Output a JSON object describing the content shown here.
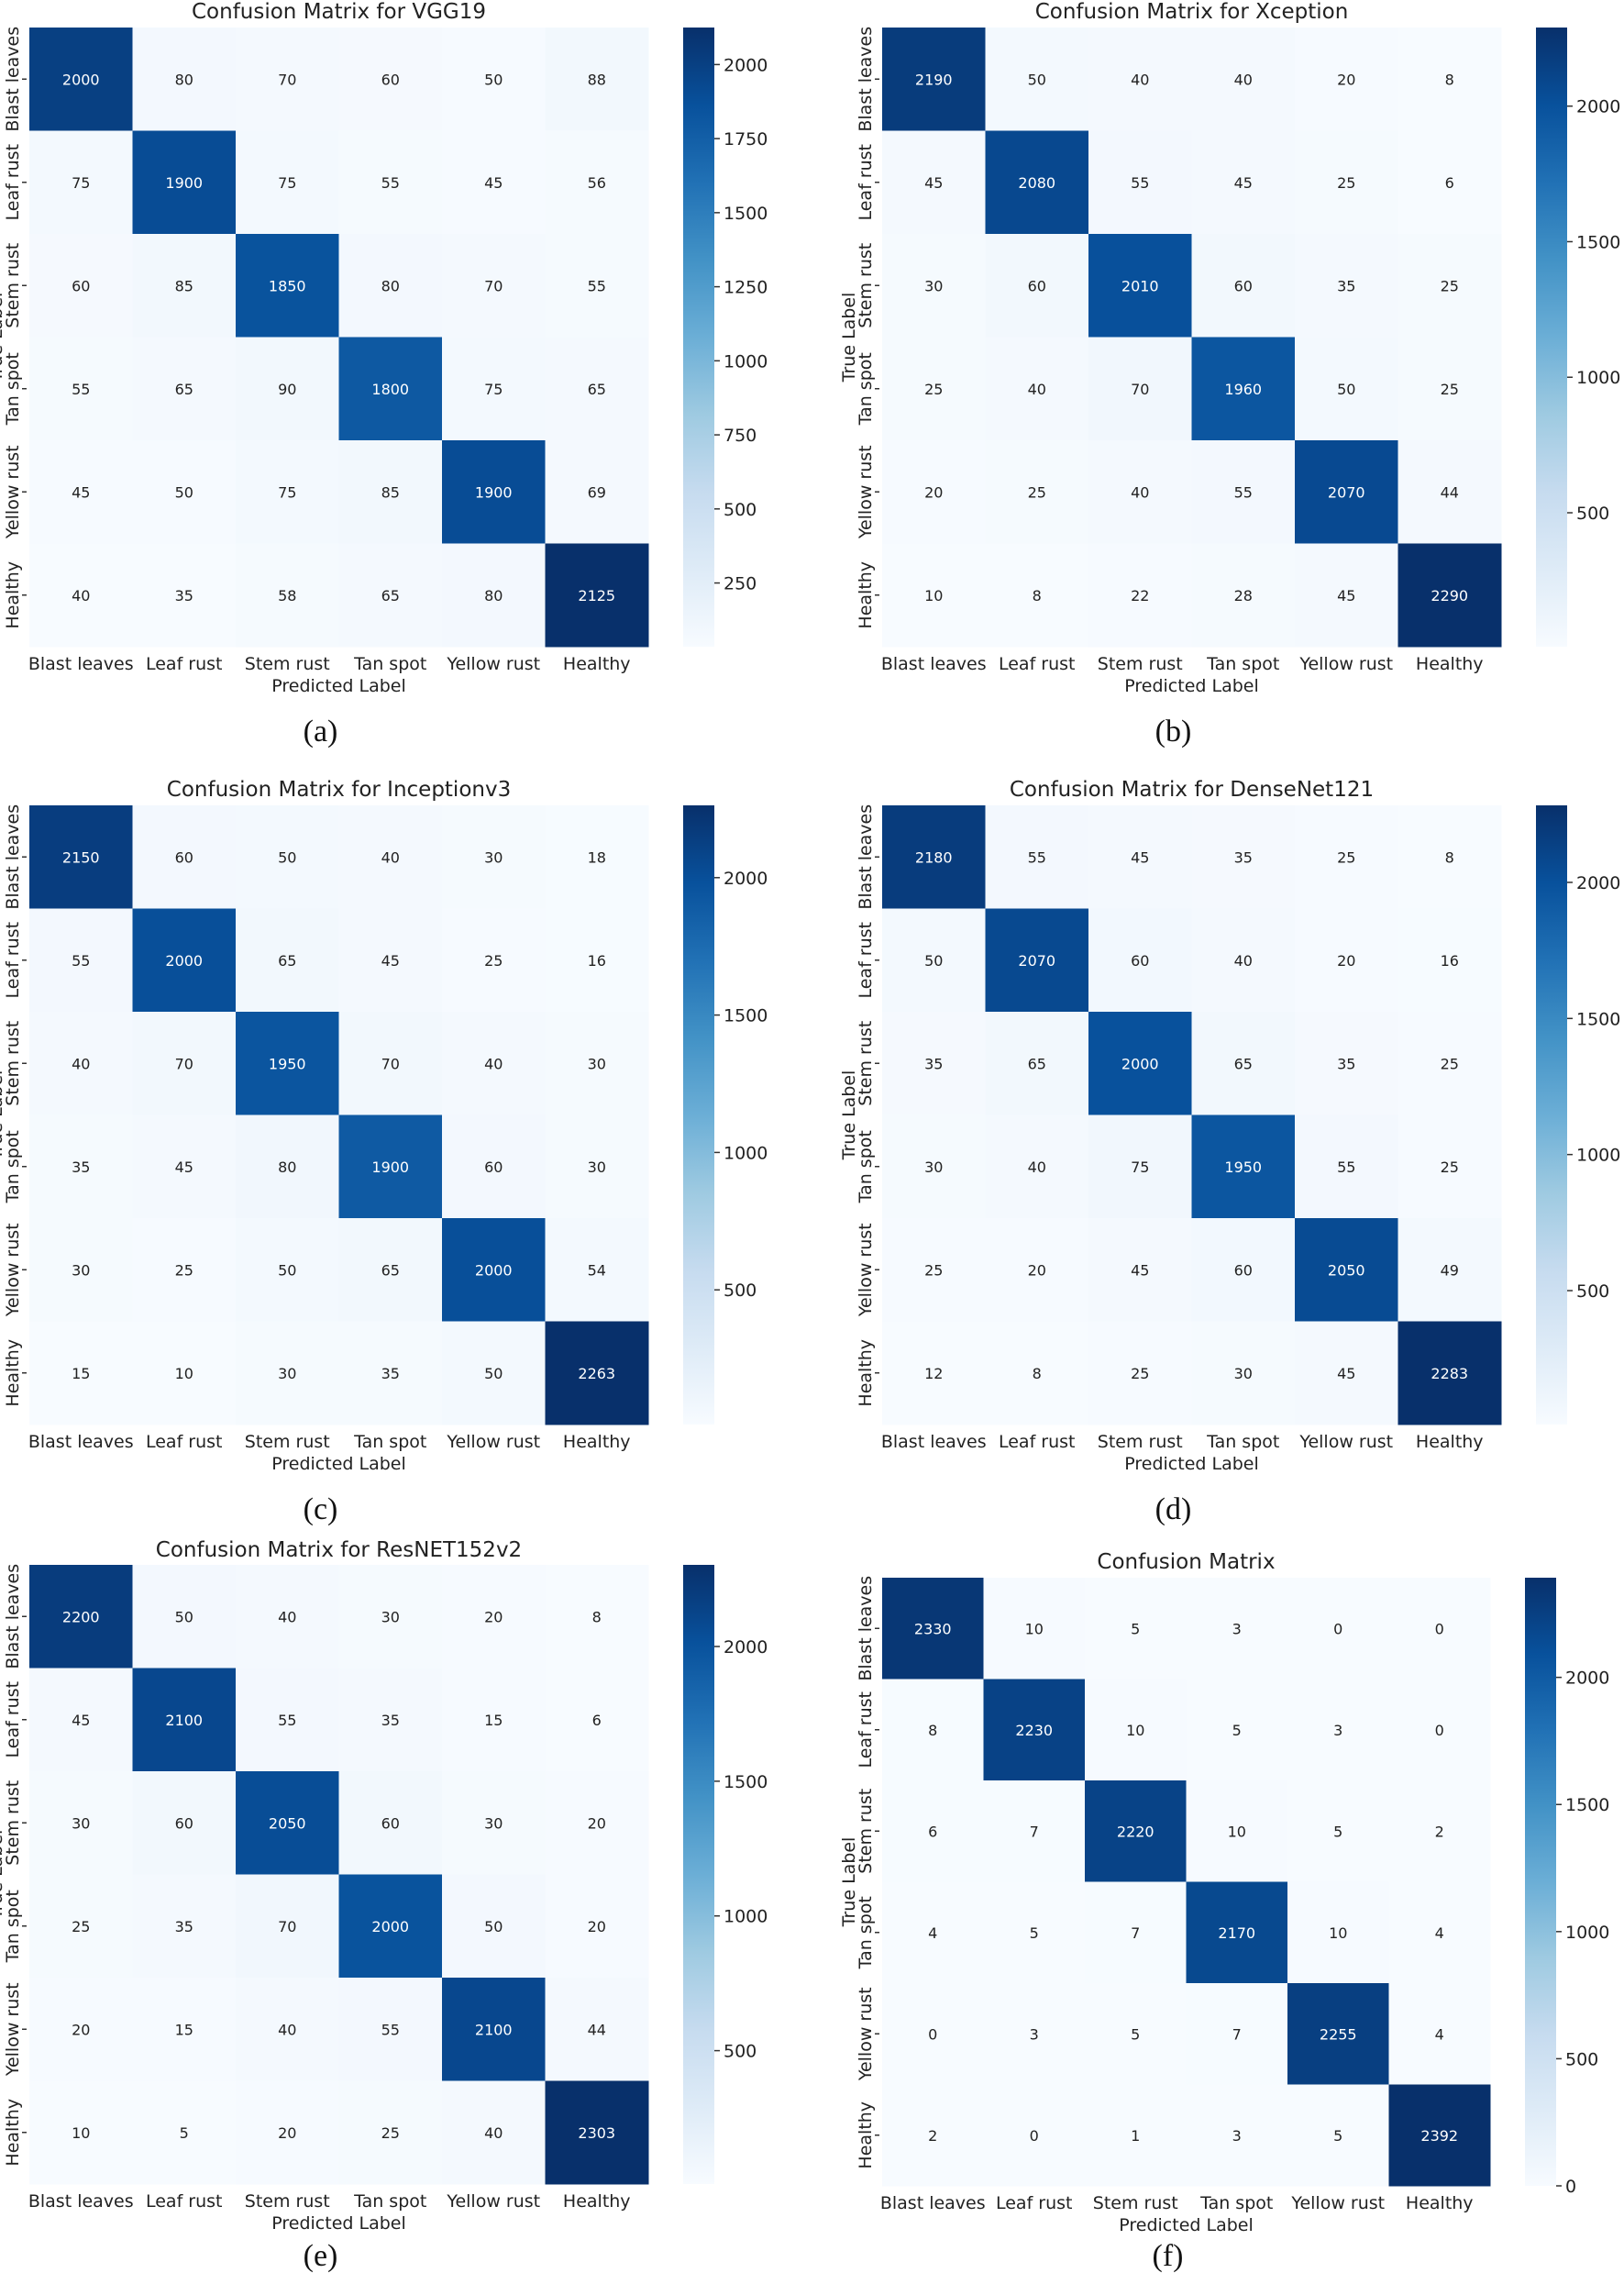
{
  "classes": [
    "Blast leaves",
    "Leaf rust",
    "Stem rust",
    "Tan spot",
    "Yellow rust",
    "Healthy"
  ],
  "xlabel": "Predicted Label",
  "ylabel": "True Label",
  "colorscale": [
    "#f7fbff",
    "#deebf7",
    "#c6dbef",
    "#9ecae1",
    "#6baed6",
    "#4292c6",
    "#2171b5",
    "#08519c",
    "#08306b"
  ],
  "chart_data": [
    {
      "type": "heatmap",
      "panel_label": "(a)",
      "title": "Confusion Matrix for VGG19",
      "xlabel": "Predicted Label",
      "ylabel": "True Label",
      "categories": [
        "Blast leaves",
        "Leaf rust",
        "Stem rust",
        "Tan spot",
        "Yellow rust",
        "Healthy"
      ],
      "matrix": [
        [
          2000,
          80,
          70,
          60,
          50,
          88
        ],
        [
          75,
          1900,
          75,
          55,
          45,
          56
        ],
        [
          60,
          85,
          1850,
          80,
          70,
          55
        ],
        [
          55,
          65,
          90,
          1800,
          75,
          65
        ],
        [
          45,
          50,
          75,
          85,
          1900,
          69
        ],
        [
          40,
          35,
          58,
          65,
          80,
          2125
        ]
      ],
      "color_range": [
        35,
        2125
      ],
      "colorbar_ticks": [
        250,
        500,
        750,
        1000,
        1250,
        1500,
        1750,
        2000
      ]
    },
    {
      "type": "heatmap",
      "panel_label": "(b)",
      "title": "Confusion Matrix for Xception",
      "xlabel": "Predicted Label",
      "ylabel": "True Label",
      "categories": [
        "Blast leaves",
        "Leaf rust",
        "Stem rust",
        "Tan spot",
        "Yellow rust",
        "Healthy"
      ],
      "matrix": [
        [
          2190,
          50,
          40,
          40,
          20,
          8
        ],
        [
          45,
          2080,
          55,
          45,
          25,
          6
        ],
        [
          30,
          60,
          2010,
          60,
          35,
          25
        ],
        [
          25,
          40,
          70,
          1960,
          50,
          25
        ],
        [
          20,
          25,
          40,
          55,
          2070,
          44
        ],
        [
          10,
          8,
          22,
          28,
          45,
          2290
        ]
      ],
      "color_range": [
        6,
        2290
      ],
      "colorbar_ticks": [
        500,
        1000,
        1500,
        2000
      ]
    },
    {
      "type": "heatmap",
      "panel_label": "(c)",
      "title": "Confusion Matrix for Inceptionv3",
      "xlabel": "Predicted Label",
      "ylabel": "True Label",
      "categories": [
        "Blast leaves",
        "Leaf rust",
        "Stem rust",
        "Tan spot",
        "Yellow rust",
        "Healthy"
      ],
      "matrix": [
        [
          2150,
          60,
          50,
          40,
          30,
          18
        ],
        [
          55,
          2000,
          65,
          45,
          25,
          16
        ],
        [
          40,
          70,
          1950,
          70,
          40,
          30
        ],
        [
          35,
          45,
          80,
          1900,
          60,
          30
        ],
        [
          30,
          25,
          50,
          65,
          2000,
          54
        ],
        [
          15,
          10,
          30,
          35,
          50,
          2263
        ]
      ],
      "color_range": [
        10,
        2263
      ],
      "colorbar_ticks": [
        500,
        1000,
        1500,
        2000
      ]
    },
    {
      "type": "heatmap",
      "panel_label": "(d)",
      "title": "Confusion Matrix for DenseNet121",
      "xlabel": "Predicted Label",
      "ylabel": "True Label",
      "categories": [
        "Blast leaves",
        "Leaf rust",
        "Stem rust",
        "Tan spot",
        "Yellow rust",
        "Healthy"
      ],
      "matrix": [
        [
          2180,
          55,
          45,
          35,
          25,
          8
        ],
        [
          50,
          2070,
          60,
          40,
          20,
          16
        ],
        [
          35,
          65,
          2000,
          65,
          35,
          25
        ],
        [
          30,
          40,
          75,
          1950,
          55,
          25
        ],
        [
          25,
          20,
          45,
          60,
          2050,
          49
        ],
        [
          12,
          8,
          25,
          30,
          45,
          2283
        ]
      ],
      "color_range": [
        8,
        2283
      ],
      "colorbar_ticks": [
        500,
        1000,
        1500,
        2000
      ]
    },
    {
      "type": "heatmap",
      "panel_label": "(e)",
      "title": "Confusion Matrix for ResNET152v2",
      "xlabel": "Predicted Label",
      "ylabel": "True Label",
      "categories": [
        "Blast leaves",
        "Leaf rust",
        "Stem rust",
        "Tan spot",
        "Yellow rust",
        "Healthy"
      ],
      "matrix": [
        [
          2200,
          50,
          40,
          30,
          20,
          8
        ],
        [
          45,
          2100,
          55,
          35,
          15,
          6
        ],
        [
          30,
          60,
          2050,
          60,
          30,
          20
        ],
        [
          25,
          35,
          70,
          2000,
          50,
          20
        ],
        [
          20,
          15,
          40,
          55,
          2100,
          44
        ],
        [
          10,
          5,
          20,
          25,
          40,
          2303
        ]
      ],
      "color_range": [
        5,
        2303
      ],
      "colorbar_ticks": [
        500,
        1000,
        1500,
        2000
      ]
    },
    {
      "type": "heatmap",
      "panel_label": "(f)",
      "title": "Confusion Matrix",
      "xlabel": "Predicted Label",
      "ylabel": "True Label",
      "categories": [
        "Blast leaves",
        "Leaf rust",
        "Stem rust",
        "Tan spot",
        "Yellow rust",
        "Healthy"
      ],
      "matrix": [
        [
          2330,
          10,
          5,
          3,
          0,
          0
        ],
        [
          8,
          2230,
          10,
          5,
          3,
          0
        ],
        [
          6,
          7,
          2220,
          10,
          5,
          2
        ],
        [
          4,
          5,
          7,
          2170,
          10,
          4
        ],
        [
          0,
          3,
          5,
          7,
          2255,
          4
        ],
        [
          2,
          0,
          1,
          3,
          5,
          2392
        ]
      ],
      "color_range": [
        0,
        2392
      ],
      "colorbar_ticks": [
        0,
        500,
        1000,
        1500,
        2000
      ]
    }
  ]
}
